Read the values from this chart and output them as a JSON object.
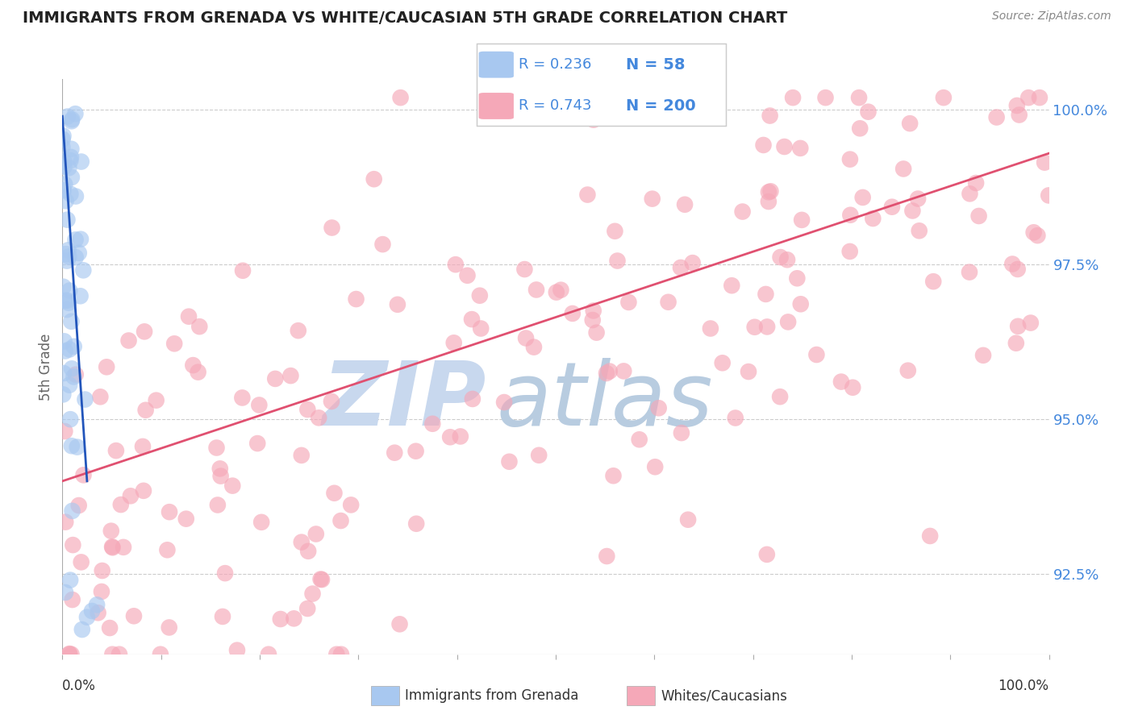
{
  "title": "IMMIGRANTS FROM GRENADA VS WHITE/CAUCASIAN 5TH GRADE CORRELATION CHART",
  "source": "Source: ZipAtlas.com",
  "ylabel": "5th Grade",
  "ylabel_ticks": [
    "92.5%",
    "95.0%",
    "97.5%",
    "100.0%"
  ],
  "ylabel_tick_vals": [
    0.925,
    0.95,
    0.975,
    1.0
  ],
  "xmin": 0.0,
  "xmax": 1.0,
  "ymin": 0.912,
  "ymax": 1.005,
  "legend_blue_r": "0.236",
  "legend_blue_n": "58",
  "legend_pink_r": "0.743",
  "legend_pink_n": "200",
  "blue_color": "#a8c8f0",
  "pink_color": "#f5a8b8",
  "blue_line_color": "#2255bb",
  "pink_line_color": "#e05070",
  "watermark_zip": "ZIP",
  "watermark_atlas": "atlas",
  "watermark_color_zip": "#c8d8ee",
  "watermark_color_atlas": "#b8cce0",
  "grid_color": "#cccccc",
  "title_color": "#222222",
  "right_tick_color": "#4488dd",
  "legend_r_color": "#4488dd",
  "legend_n_color": "#4488dd",
  "bottom_legend_color": "#333333",
  "pink_line_start_x": 0.0,
  "pink_line_start_y": 0.94,
  "pink_line_end_x": 1.0,
  "pink_line_end_y": 0.993,
  "blue_line_start_x": 0.0,
  "blue_line_start_y": 0.999,
  "blue_line_end_x": 0.025,
  "blue_line_end_y": 0.94
}
